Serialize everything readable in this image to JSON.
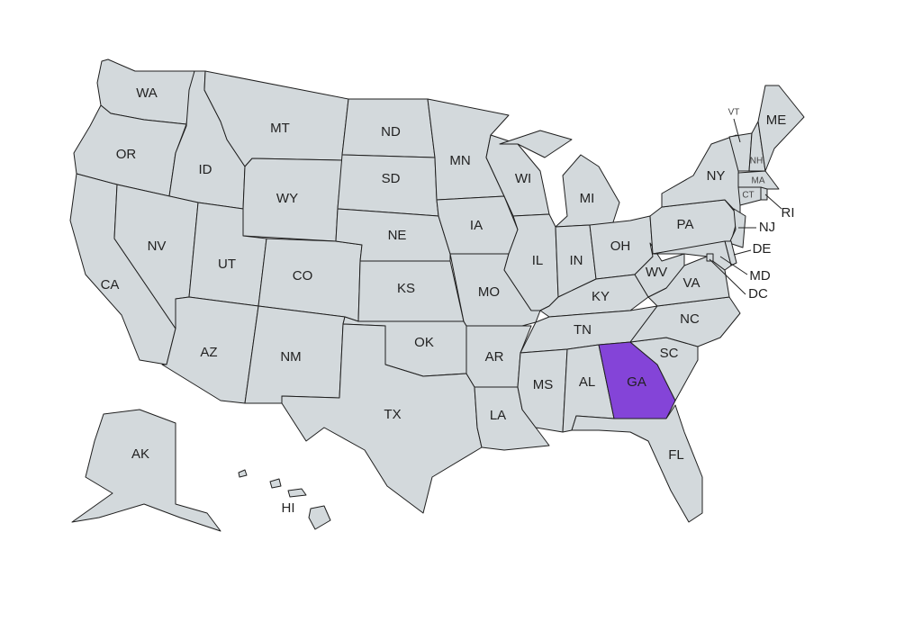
{
  "colors": {
    "default_fill": "#d3d9dc",
    "highlight_fill": "#8444d8",
    "border": "#1f1f1f"
  },
  "highlighted": [
    "GA"
  ],
  "states": [
    {
      "id": "WA",
      "label": "WA"
    },
    {
      "id": "OR",
      "label": "OR"
    },
    {
      "id": "CA",
      "label": "CA"
    },
    {
      "id": "ID",
      "label": "ID"
    },
    {
      "id": "NV",
      "label": "NV"
    },
    {
      "id": "MT",
      "label": "MT"
    },
    {
      "id": "WY",
      "label": "WY"
    },
    {
      "id": "UT",
      "label": "UT"
    },
    {
      "id": "AZ",
      "label": "AZ"
    },
    {
      "id": "CO",
      "label": "CO"
    },
    {
      "id": "NM",
      "label": "NM"
    },
    {
      "id": "ND",
      "label": "ND"
    },
    {
      "id": "SD",
      "label": "SD"
    },
    {
      "id": "NE",
      "label": "NE"
    },
    {
      "id": "KS",
      "label": "KS"
    },
    {
      "id": "OK",
      "label": "OK"
    },
    {
      "id": "TX",
      "label": "TX"
    },
    {
      "id": "MN",
      "label": "MN"
    },
    {
      "id": "IA",
      "label": "IA"
    },
    {
      "id": "MO",
      "label": "MO"
    },
    {
      "id": "AR",
      "label": "AR"
    },
    {
      "id": "LA",
      "label": "LA"
    },
    {
      "id": "WI",
      "label": "WI"
    },
    {
      "id": "IL",
      "label": "IL"
    },
    {
      "id": "MI",
      "label": "MI"
    },
    {
      "id": "IN",
      "label": "IN"
    },
    {
      "id": "OH",
      "label": "OH"
    },
    {
      "id": "KY",
      "label": "KY"
    },
    {
      "id": "TN",
      "label": "TN"
    },
    {
      "id": "MS",
      "label": "MS"
    },
    {
      "id": "AL",
      "label": "AL"
    },
    {
      "id": "GA",
      "label": "GA"
    },
    {
      "id": "FL",
      "label": "FL"
    },
    {
      "id": "SC",
      "label": "SC"
    },
    {
      "id": "NC",
      "label": "NC"
    },
    {
      "id": "VA",
      "label": "VA"
    },
    {
      "id": "WV",
      "label": "WV"
    },
    {
      "id": "PA",
      "label": "PA"
    },
    {
      "id": "NY",
      "label": "NY"
    },
    {
      "id": "NJ",
      "label": "NJ"
    },
    {
      "id": "DE",
      "label": "DE"
    },
    {
      "id": "MD",
      "label": "MD"
    },
    {
      "id": "DC",
      "label": "DC"
    },
    {
      "id": "VT",
      "label": "VT"
    },
    {
      "id": "NH",
      "label": "NH"
    },
    {
      "id": "ME",
      "label": "ME"
    },
    {
      "id": "MA",
      "label": "MA"
    },
    {
      "id": "CT",
      "label": "CT"
    },
    {
      "id": "RI",
      "label": "RI"
    },
    {
      "id": "AK",
      "label": "AK"
    },
    {
      "id": "HI",
      "label": "HI"
    }
  ]
}
